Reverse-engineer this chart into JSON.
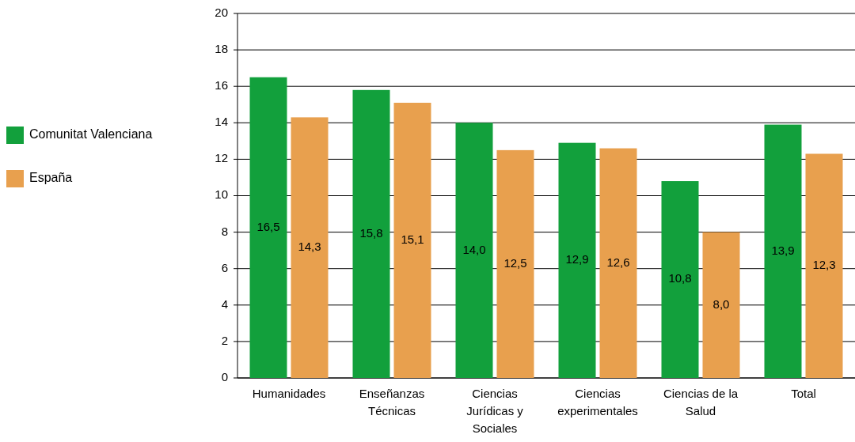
{
  "chart_data": {
    "type": "bar",
    "categories": [
      "Humanidades",
      "Enseñanzas Técnicas",
      "Ciencias Jurídicas y Sociales",
      "Ciencias experimentales",
      "Ciencias de la Salud",
      "Total"
    ],
    "series": [
      {
        "name": "Comunitat Valenciana",
        "color": "#12a03c",
        "values": [
          16.5,
          15.8,
          14.0,
          12.9,
          10.8,
          13.9
        ],
        "value_labels": [
          "16,5",
          "15,8",
          "14,0",
          "12,9",
          "10,8",
          "13,9"
        ]
      },
      {
        "name": "España",
        "color": "#e8a04e",
        "values": [
          14.3,
          15.1,
          12.5,
          12.6,
          8.0,
          12.3
        ],
        "value_labels": [
          "14,3",
          "15,1",
          "12,5",
          "12,6",
          "8,0",
          "12,3"
        ]
      }
    ],
    "ylim": [
      0,
      20
    ],
    "yticks": [
      0,
      2,
      4,
      6,
      8,
      10,
      12,
      14,
      16,
      18,
      20
    ],
    "grid": "y",
    "legend": "left"
  }
}
